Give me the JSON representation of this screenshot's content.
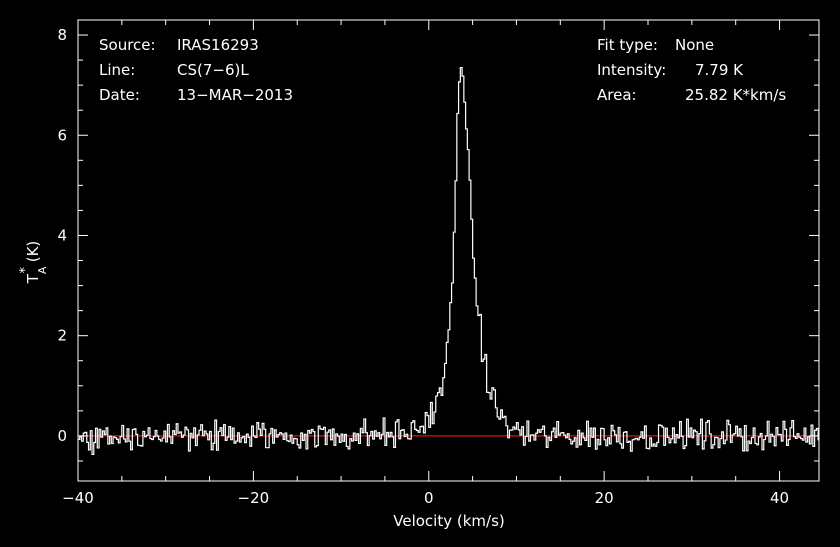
{
  "header": {
    "source_label": "Source:",
    "source_value": "IRAS16293",
    "line_label": "Line:",
    "line_value": "CS(7−6)L",
    "date_label": "Date:",
    "date_value": "13−MAR−2013",
    "fit_label": "Fit type:",
    "fit_value": "None",
    "intensity_label": "Intensity:",
    "intensity_value": "7.79 K",
    "area_label": "Area:",
    "area_value": "25.82 K*km/s"
  },
  "colors": {
    "background": "#000000",
    "foreground": "#ffffff",
    "baseline": "#e01010"
  },
  "chart_data": {
    "type": "line",
    "title": "",
    "xlabel": "Velocity (km/s)",
    "ylabel": "T*A (K)",
    "ylabel_parts": {
      "main": "T",
      "sup": "*",
      "sub": "A",
      "unit": " (K)"
    },
    "xlim": [
      -40,
      44.5
    ],
    "ylim": [
      -0.9,
      8.3
    ],
    "xticks": [
      -40,
      -20,
      0,
      20,
      40
    ],
    "xtick_labels": [
      "−40",
      "−20",
      "0",
      "20",
      "40"
    ],
    "yticks": [
      0,
      2,
      4,
      6,
      8
    ],
    "ytick_labels": [
      "0",
      "2",
      "4",
      "6",
      "8"
    ],
    "grid": false,
    "baseline_y": 0,
    "series": [
      {
        "style": "histogram",
        "channel_width": 0.2,
        "noise_rms": 0.15,
        "profile": {
          "x": [
            -40,
            -10,
            -2,
            0,
            1,
            1.5,
            2,
            2.5,
            3,
            3.3,
            3.6,
            3.8,
            4.1,
            4.5,
            5,
            5.5,
            6,
            6.5,
            7,
            8,
            9,
            10,
            12,
            44.5
          ],
          "y": [
            0,
            0,
            0.05,
            0.35,
            0.65,
            0.95,
            1.5,
            2.5,
            4.3,
            6.4,
            7.79,
            7.5,
            6.6,
            5.4,
            4.0,
            2.7,
            1.9,
            1.3,
            0.9,
            0.45,
            0.2,
            0.08,
            0,
            0
          ]
        }
      }
    ]
  }
}
